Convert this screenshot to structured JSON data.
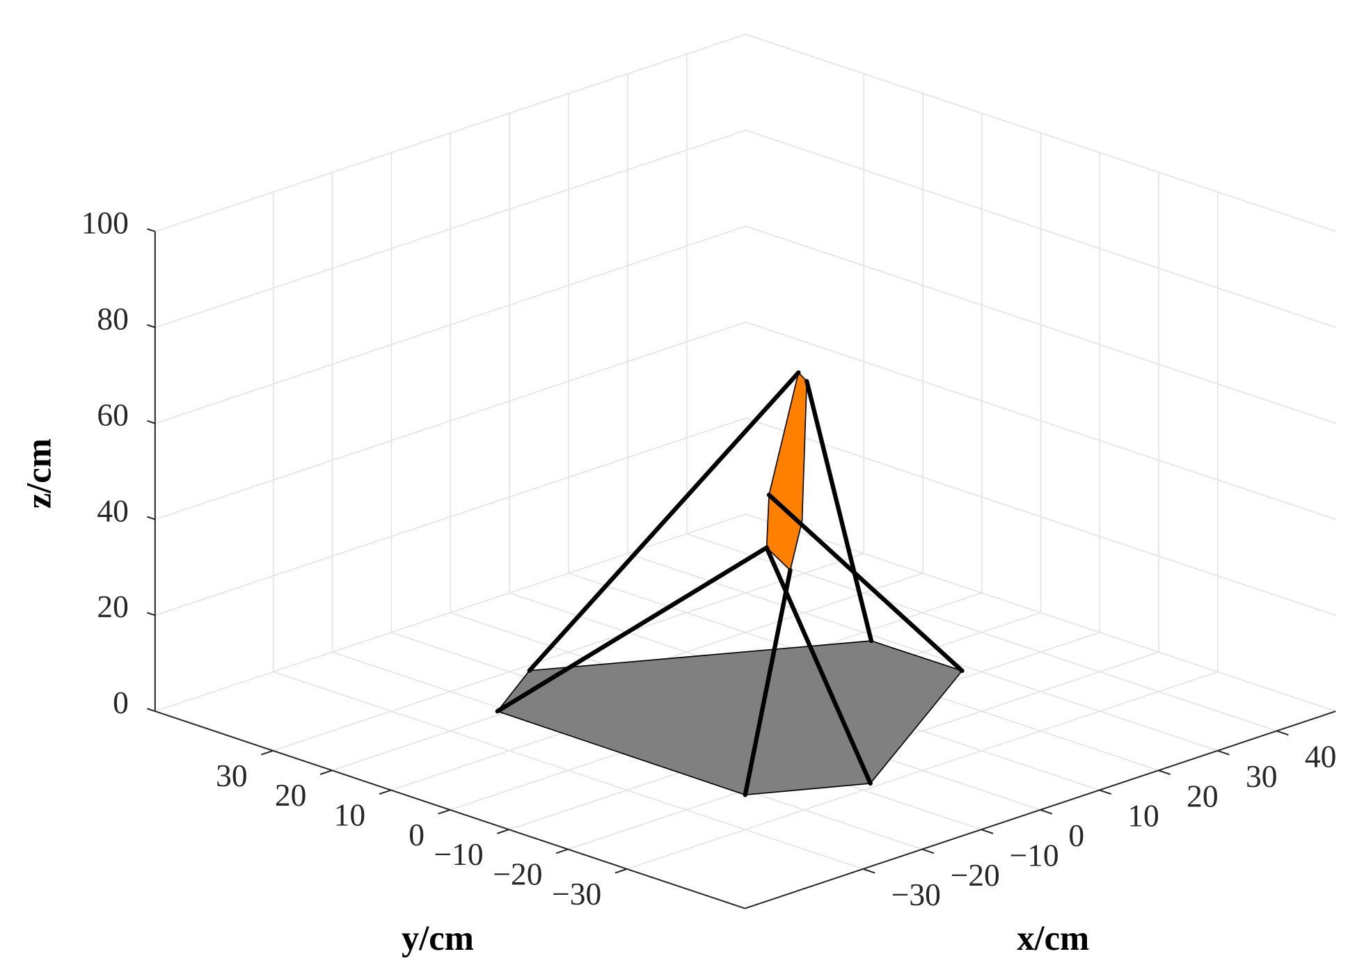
{
  "chart_data": {
    "type": "line3d",
    "xlabel": "x/cm",
    "ylabel": "y/cm",
    "zlabel": "z/cm",
    "xlim": [
      -50,
      50
    ],
    "ylim": [
      -50,
      50
    ],
    "zlim": [
      0,
      100
    ],
    "xticks": [
      {
        "value": -30,
        "label": "−30"
      },
      {
        "value": -20,
        "label": "−20"
      },
      {
        "value": -10,
        "label": "−10"
      },
      0,
      10,
      20,
      30,
      40
    ],
    "yticks": [
      {
        "value": -30,
        "label": "−30"
      },
      {
        "value": -20,
        "label": "−20"
      },
      {
        "value": -10,
        "label": "−10"
      },
      0,
      10,
      20,
      30
    ],
    "zticks": [
      0,
      20,
      40,
      60,
      80,
      100
    ],
    "grid": true,
    "surfaces": [
      {
        "x": [
          -21,
          -8,
          28.5,
          28.6,
          -7.7,
          -21.2
        ],
        "y": [
          21,
          28.6,
          7.2,
          -8.1,
          -28.9,
          -21.2
        ],
        "z": [
          0,
          0,
          0,
          0,
          0,
          0
        ],
        "color": "#808080"
      },
      {
        "x": [
          4.5,
          5.2,
          4.8,
          3.8,
          1.8,
          2.0
        ],
        "y": [
          -4.5,
          -5.2,
          -4.8,
          -3.8,
          -1.8,
          -2.0
        ],
        "z": [
          70.6,
          68.8,
          39.6,
          29.4,
          34.1,
          45.1
        ],
        "color": "#ff8000"
      }
    ],
    "lines": [
      {
        "x": [
          -21,
          1.8
        ],
        "y": [
          21,
          -1.8
        ],
        "z": [
          0,
          34.1
        ]
      },
      {
        "x": [
          -8,
          4.5
        ],
        "y": [
          28.6,
          -4.5
        ],
        "z": [
          0,
          70.6
        ]
      },
      {
        "x": [
          28.5,
          5.2
        ],
        "y": [
          7.2,
          -5.2
        ],
        "z": [
          0,
          68.8
        ]
      },
      {
        "x": [
          28.6,
          2.0
        ],
        "y": [
          -8.1,
          -2.0
        ],
        "z": [
          0,
          45.1
        ]
      },
      {
        "x": [
          -7.7,
          1.8
        ],
        "y": [
          -28.9,
          -1.8
        ],
        "z": [
          0,
          34.1
        ]
      },
      {
        "x": [
          -21.2,
          3.8
        ],
        "y": [
          -21.2,
          -3.8
        ],
        "z": [
          0,
          29.4
        ]
      }
    ],
    "line_color": "#000000"
  }
}
